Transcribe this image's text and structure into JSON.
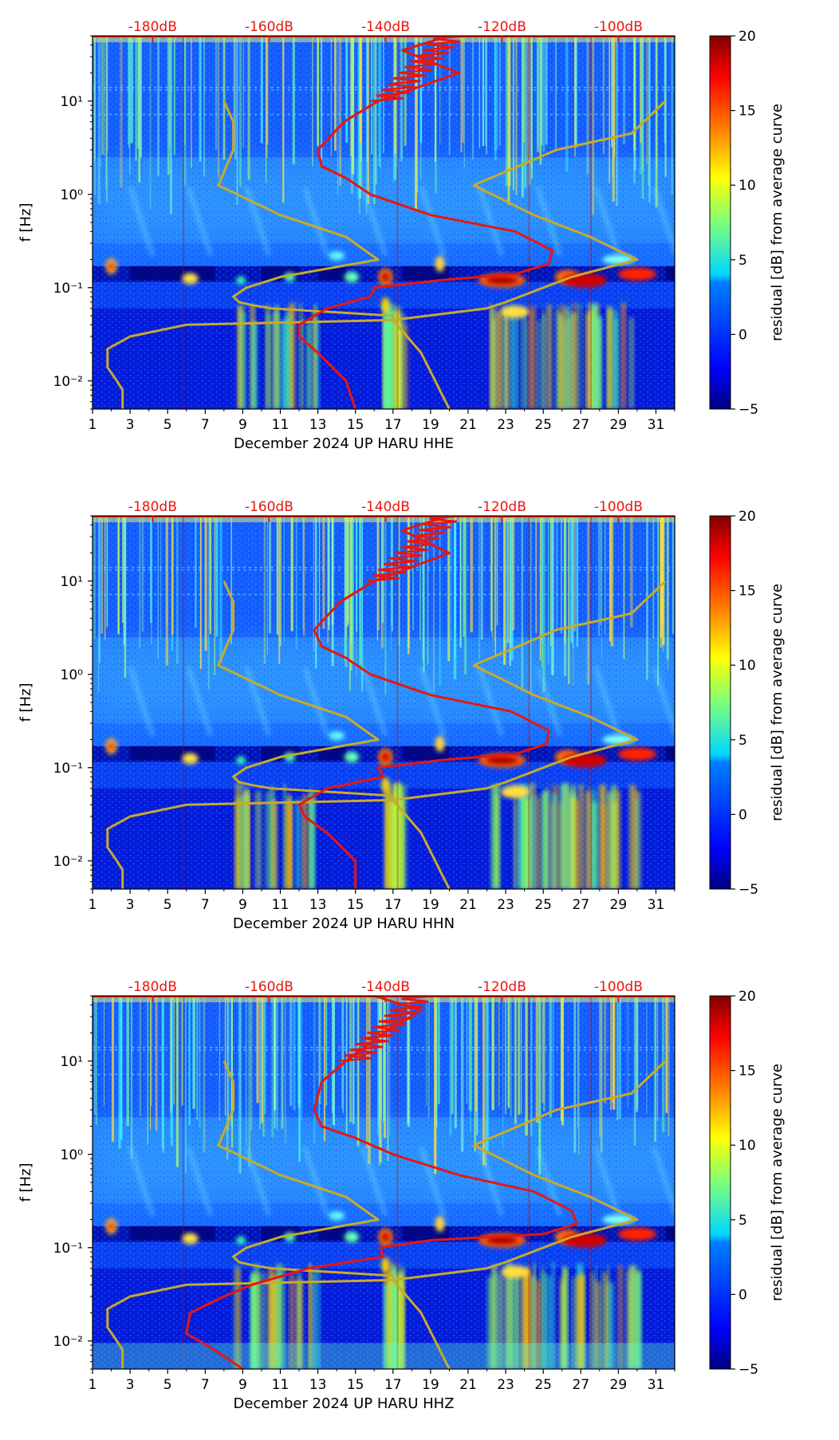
{
  "colors": {
    "residual_colormap": [
      "#000080",
      "#0000ff",
      "#0080ff",
      "#00ffff",
      "#80ff80",
      "#ffff00",
      "#ff8000",
      "#ff0000",
      "#800000"
    ],
    "psd_curve": "#e8160f",
    "noise_model_curve": "#c9aa2a",
    "db_label": "#e8160f"
  },
  "chart_data": [
    {
      "type": "heatmap",
      "channel": "HHE",
      "xlabel": "December 2024 UP HARU  HHE",
      "ylabel": "f [Hz]",
      "xlim": [
        1,
        32
      ],
      "ylim": [
        0.005,
        50
      ],
      "yscale": "log",
      "x_ticks": [
        "1",
        "3",
        "5",
        "7",
        "9",
        "11",
        "13",
        "15",
        "17",
        "19",
        "21",
        "23",
        "25",
        "27",
        "29",
        "31"
      ],
      "y_ticks": [
        "10⁻²",
        "10⁻¹",
        "10⁰",
        "10¹"
      ],
      "top_db_labels": [
        "-180dB",
        "-160dB",
        "-140dB",
        "-120dB",
        "-100dB"
      ],
      "colorbar": {
        "label": "residual [dB] from average curve",
        "range": [
          -5,
          20
        ],
        "ticks": [
          "−5",
          "0",
          "5",
          "10",
          "15",
          "20"
        ]
      },
      "psd_curve": {
        "freq": [
          50,
          35,
          20,
          10,
          6,
          3,
          2,
          1.5,
          1.0,
          0.6,
          0.4,
          0.25,
          0.18,
          0.14,
          0.12,
          0.1,
          0.08,
          0.06,
          0.04,
          0.03,
          0.02,
          0.01,
          0.005
        ],
        "day": [
          20,
          17.5,
          20.5,
          16.2,
          14.4,
          13,
          13.2,
          14.5,
          15.8,
          19,
          23.5,
          25.5,
          25.3,
          23.5,
          19.5,
          16,
          15.8,
          13.5,
          12,
          12,
          13,
          14.5,
          15
        ]
      },
      "noise_model_curve": {
        "freq": [
          10,
          6,
          3,
          1.25,
          0.6,
          0.35,
          0.2,
          0.13,
          0.1,
          0.08,
          0.07,
          0.065,
          0.06,
          0.05,
          0.045,
          0.04,
          0.03,
          0.022,
          0.014,
          0.01,
          0.008,
          0.005
        ],
        "day": [
          8.0,
          8.5,
          8.5,
          7.7,
          11,
          14.5,
          16.2,
          11,
          9.2,
          8.5,
          8.8,
          9.5,
          10.5,
          17,
          17,
          6,
          3,
          1.8,
          1.8,
          2.3,
          2.6,
          2.6
        ]
      }
    },
    {
      "type": "heatmap",
      "channel": "HHN",
      "xlabel": "December 2024 UP HARU  HHN",
      "ylabel": "f [Hz]",
      "xlim": [
        1,
        32
      ],
      "ylim": [
        0.005,
        50
      ],
      "yscale": "log",
      "x_ticks": [
        "1",
        "3",
        "5",
        "7",
        "9",
        "11",
        "13",
        "15",
        "17",
        "19",
        "21",
        "23",
        "25",
        "27",
        "29",
        "31"
      ],
      "y_ticks": [
        "10⁻²",
        "10⁻¹",
        "10⁰",
        "10¹"
      ],
      "top_db_labels": [
        "-180dB",
        "-160dB",
        "-140dB",
        "-120dB",
        "-100dB"
      ],
      "colorbar": {
        "label": "residual [dB] from average curve",
        "range": [
          -5,
          20
        ],
        "ticks": [
          "−5",
          "0",
          "5",
          "10",
          "15",
          "20"
        ]
      },
      "psd_curve": {
        "freq": [
          50,
          35,
          20,
          10,
          6,
          3,
          2,
          1.5,
          1.0,
          0.6,
          0.4,
          0.25,
          0.18,
          0.14,
          0.12,
          0.1,
          0.08,
          0.06,
          0.04,
          0.03,
          0.02,
          0.01,
          0.005
        ],
        "day": [
          20,
          17.5,
          20,
          16,
          14.2,
          12.8,
          13.2,
          14.5,
          15.8,
          19,
          23.3,
          25.3,
          25.2,
          23.5,
          19.5,
          16.2,
          16.5,
          13.5,
          12,
          12.3,
          13.5,
          15,
          15
        ]
      },
      "noise_model_curve": {
        "freq": [
          10,
          6,
          3,
          1.25,
          0.6,
          0.35,
          0.2,
          0.13,
          0.1,
          0.08,
          0.07,
          0.065,
          0.06,
          0.05,
          0.045,
          0.04,
          0.03,
          0.022,
          0.014,
          0.01,
          0.008,
          0.005
        ],
        "day": [
          8.0,
          8.5,
          8.5,
          7.7,
          11,
          14.5,
          16.2,
          11,
          9.2,
          8.5,
          8.8,
          9.5,
          10.5,
          17,
          17,
          6,
          3,
          1.8,
          1.8,
          2.3,
          2.6,
          2.6
        ]
      }
    },
    {
      "type": "heatmap",
      "channel": "HHZ",
      "xlabel": "December 2024 UP HARU  HHZ",
      "ylabel": "f [Hz]",
      "xlim": [
        1,
        32
      ],
      "ylim": [
        0.005,
        50
      ],
      "yscale": "log",
      "x_ticks": [
        "1",
        "3",
        "5",
        "7",
        "9",
        "11",
        "13",
        "15",
        "17",
        "19",
        "21",
        "23",
        "25",
        "27",
        "29",
        "31"
      ],
      "y_ticks": [
        "10⁻²",
        "10⁻¹",
        "10⁰",
        "10¹"
      ],
      "top_db_labels": [
        "-180dB",
        "-160dB",
        "-140dB",
        "-120dB",
        "-100dB"
      ],
      "colorbar": {
        "label": "residual [dB] from average curve",
        "range": [
          -5,
          20
        ],
        "ticks": [
          "−5",
          "0",
          "5",
          "10",
          "15",
          "20"
        ]
      },
      "psd_curve": {
        "freq": [
          50,
          35,
          20,
          10,
          6,
          3,
          2,
          1.5,
          1.0,
          0.6,
          0.4,
          0.25,
          0.18,
          0.14,
          0.12,
          0.1,
          0.08,
          0.06,
          0.04,
          0.03,
          0.02,
          0.012,
          0.008,
          0.005
        ],
        "day": [
          16,
          18.5,
          16.5,
          14.5,
          13.2,
          12.8,
          13.2,
          15,
          17,
          20.5,
          24.5,
          26.5,
          26.8,
          25,
          19,
          16.3,
          16.5,
          12.5,
          9.5,
          8,
          6.2,
          6,
          7.5,
          9
        ]
      },
      "noise_model_curve": {
        "freq": [
          10,
          6,
          3,
          1.25,
          0.6,
          0.35,
          0.2,
          0.13,
          0.1,
          0.08,
          0.07,
          0.065,
          0.06,
          0.05,
          0.045,
          0.04,
          0.03,
          0.022,
          0.014,
          0.01,
          0.008,
          0.005
        ],
        "day": [
          8.0,
          8.5,
          8.5,
          7.7,
          11,
          14.5,
          16.2,
          11,
          9.2,
          8.5,
          8.8,
          9.5,
          10.5,
          17,
          17,
          6,
          3,
          1.8,
          1.8,
          2.3,
          2.6,
          2.6
        ]
      }
    }
  ]
}
